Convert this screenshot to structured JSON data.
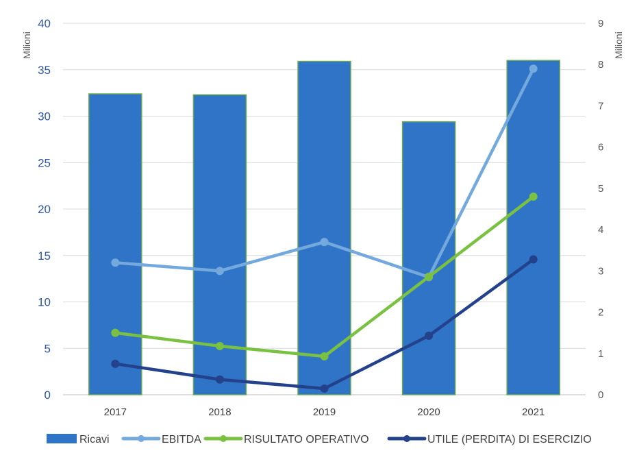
{
  "chart_data": {
    "type": "bar",
    "title": "",
    "categories": [
      "2017",
      "2018",
      "2019",
      "2020",
      "2021"
    ],
    "y_left": {
      "unit_label": "Milioni",
      "ylim": [
        0,
        40
      ],
      "ticks": [
        0,
        5,
        10,
        15,
        20,
        25,
        30,
        35,
        40
      ]
    },
    "y_right": {
      "unit_label": "Milioni",
      "ylim": [
        0,
        9
      ],
      "ticks": [
        0,
        1,
        2,
        3,
        4,
        5,
        6,
        7,
        8,
        9
      ]
    },
    "series": [
      {
        "name": "Ricavi",
        "type": "bar",
        "axis": "left",
        "color": "#2f74c6",
        "border": "#6aa84f",
        "values": [
          32.4,
          32.3,
          35.9,
          29.4,
          36.0
        ]
      },
      {
        "name": "EBITDA",
        "type": "line",
        "axis": "right",
        "color": "#74a9de",
        "values": [
          3.2,
          3.0,
          3.7,
          2.85,
          7.9
        ]
      },
      {
        "name": "RISULTATO OPERATIVO",
        "type": "line",
        "axis": "right",
        "color": "#7ac142",
        "values": [
          1.5,
          1.18,
          0.93,
          2.86,
          4.8
        ]
      },
      {
        "name": "UTILE (PERDITA) DI ESERCIZIO",
        "type": "line",
        "axis": "right",
        "color": "#24428c",
        "values": [
          0.75,
          0.37,
          0.15,
          1.43,
          3.28
        ]
      }
    ],
    "grid": true,
    "legend_position": "bottom"
  }
}
